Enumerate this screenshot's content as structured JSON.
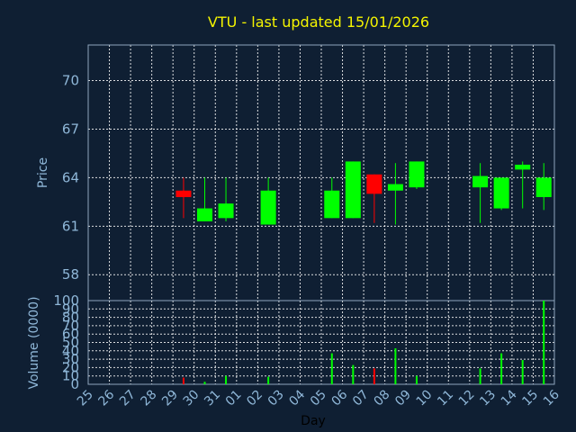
{
  "chart_data": [
    {
      "type": "candlestick",
      "title": "VTU - last updated 15/01/2026",
      "ylabel": "Price",
      "ylim": [
        56.4,
        72.2
      ],
      "yticks": [
        58,
        61,
        64,
        67,
        70
      ],
      "grid": true,
      "colors": {
        "up": "#00ff00",
        "down": "#ff0000",
        "background": "#0f1f33",
        "text": "#8fb7d8",
        "title": "#f4f400"
      },
      "candles": [
        {
          "day": "29",
          "open": 63.2,
          "high": 64.0,
          "low": 61.5,
          "close": 62.8
        },
        {
          "day": "30",
          "open": 61.3,
          "high": 64.0,
          "low": 61.3,
          "close": 62.1
        },
        {
          "day": "31",
          "open": 61.5,
          "high": 64.0,
          "low": 61.3,
          "close": 62.4
        },
        {
          "day": "02",
          "open": 61.1,
          "high": 64.0,
          "low": 61.1,
          "close": 63.2
        },
        {
          "day": "05",
          "open": 61.5,
          "high": 64.0,
          "low": 61.5,
          "close": 63.2
        },
        {
          "day": "06",
          "open": 61.5,
          "high": 65.0,
          "low": 61.5,
          "close": 65.0
        },
        {
          "day": "07",
          "open": 64.2,
          "high": 64.2,
          "low": 61.2,
          "close": 63.0
        },
        {
          "day": "08",
          "open": 63.2,
          "high": 64.9,
          "low": 61.1,
          "close": 63.6
        },
        {
          "day": "09",
          "open": 63.4,
          "high": 65.0,
          "low": 63.3,
          "close": 65.0
        },
        {
          "day": "12",
          "open": 63.4,
          "high": 64.9,
          "low": 61.2,
          "close": 64.1
        },
        {
          "day": "13",
          "open": 62.1,
          "high": 64.0,
          "low": 62.0,
          "close": 64.0
        },
        {
          "day": "14",
          "open": 64.5,
          "high": 65.0,
          "low": 62.1,
          "close": 64.8
        },
        {
          "day": "15",
          "open": 62.8,
          "high": 64.9,
          "low": 62.0,
          "close": 64.0
        }
      ]
    },
    {
      "type": "bar",
      "ylabel": "Volume (0000)",
      "xlabel": "Day",
      "ylim": [
        0,
        100
      ],
      "yticks": [
        0,
        10,
        20,
        30,
        40,
        50,
        60,
        70,
        80,
        90,
        100
      ],
      "grid": true,
      "categories": [
        "25",
        "26",
        "27",
        "28",
        "29",
        "30",
        "31",
        "01",
        "02",
        "03",
        "04",
        "05",
        "06",
        "07",
        "08",
        "09",
        "10",
        "11",
        "12",
        "13",
        "14",
        "15",
        "16"
      ],
      "values": [
        0,
        0,
        0,
        0,
        8,
        3,
        10,
        0,
        9,
        0,
        0,
        37,
        23,
        19,
        43,
        10,
        0,
        0,
        19,
        37,
        29,
        100,
        0
      ]
    }
  ]
}
